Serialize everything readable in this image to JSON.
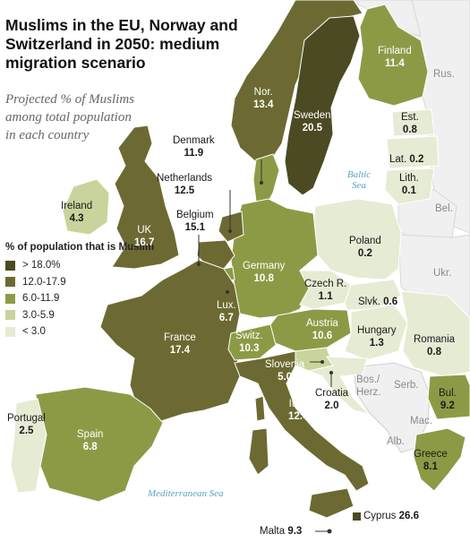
{
  "title": "Muslims in the EU, Norway and Switzerland in 2050: medium migration scenario",
  "subtitle": "Projected % of Muslims among total population in each country",
  "legend": {
    "title": "% of population that is Muslim",
    "items": [
      {
        "label": "> 18.0%",
        "color": "#4b4a22"
      },
      {
        "label": "12.0-17.9",
        "color": "#6c6a32"
      },
      {
        "label": "6.0-11.9",
        "color": "#8d9a45"
      },
      {
        "label": "3.0-5.9",
        "color": "#c8d49b"
      },
      {
        "label": "< 3.0",
        "color": "#e6ebd4"
      }
    ]
  },
  "countries": {
    "finland": {
      "name": "Finland",
      "value": "11.4"
    },
    "norway": {
      "name": "Nor.",
      "value": "13.4"
    },
    "sweden": {
      "name": "Sweden",
      "value": "20.5"
    },
    "estonia": {
      "name": "Est.",
      "value": "0.8"
    },
    "latvia": {
      "name": "Lat.",
      "value": "0.2"
    },
    "lithuania": {
      "name": "Lith.",
      "value": "0.1"
    },
    "denmark": {
      "name": "Denmark",
      "value": "11.9"
    },
    "netherlands": {
      "name": "Netherlands",
      "value": "12.5"
    },
    "belgium": {
      "name": "Belgium",
      "value": "15.1"
    },
    "ireland": {
      "name": "Ireland",
      "value": "4.3"
    },
    "uk": {
      "name": "UK",
      "value": "16.7"
    },
    "poland": {
      "name": "Poland",
      "value": "0.2"
    },
    "germany": {
      "name": "Germany",
      "value": "10.8"
    },
    "czech": {
      "name": "Czech R.",
      "value": "1.1"
    },
    "slovakia": {
      "name": "Slvk.",
      "value": "0.6"
    },
    "luxembourg": {
      "name": "Lux.",
      "value": "6.7"
    },
    "austria": {
      "name": "Austria",
      "value": "10.6"
    },
    "hungary": {
      "name": "Hungary",
      "value": "1.3"
    },
    "romania": {
      "name": "Romania",
      "value": "0.8"
    },
    "france": {
      "name": "France",
      "value": "17.4"
    },
    "switzerland": {
      "name": "Switz.",
      "value": "10.3"
    },
    "slovenia": {
      "name": "Slovenia",
      "value": "5.0"
    },
    "croatia": {
      "name": "Croatia",
      "value": "2.0"
    },
    "italy": {
      "name": "Italy",
      "value": "12.4"
    },
    "bulgaria": {
      "name": "Bul.",
      "value": "9.2"
    },
    "portugal": {
      "name": "Portugal",
      "value": "2.5"
    },
    "spain": {
      "name": "Spain",
      "value": "6.8"
    },
    "greece": {
      "name": "Greece",
      "value": "8.1"
    },
    "cyprus": {
      "name": "Cyprus",
      "value": "26.6"
    },
    "malta": {
      "name": "Malta",
      "value": "9.3"
    }
  },
  "non_eu_labels": {
    "russia": "Rus.",
    "belarus": "Bel.",
    "ukraine": "Ukr.",
    "bosnia": "Bos./ Herz.",
    "serbia": "Serb.",
    "macedonia": "Mac.",
    "albania": "Alb."
  },
  "seas": {
    "baltic": "Baltic Sea",
    "mediterranean": "Mediterranean Sea"
  }
}
